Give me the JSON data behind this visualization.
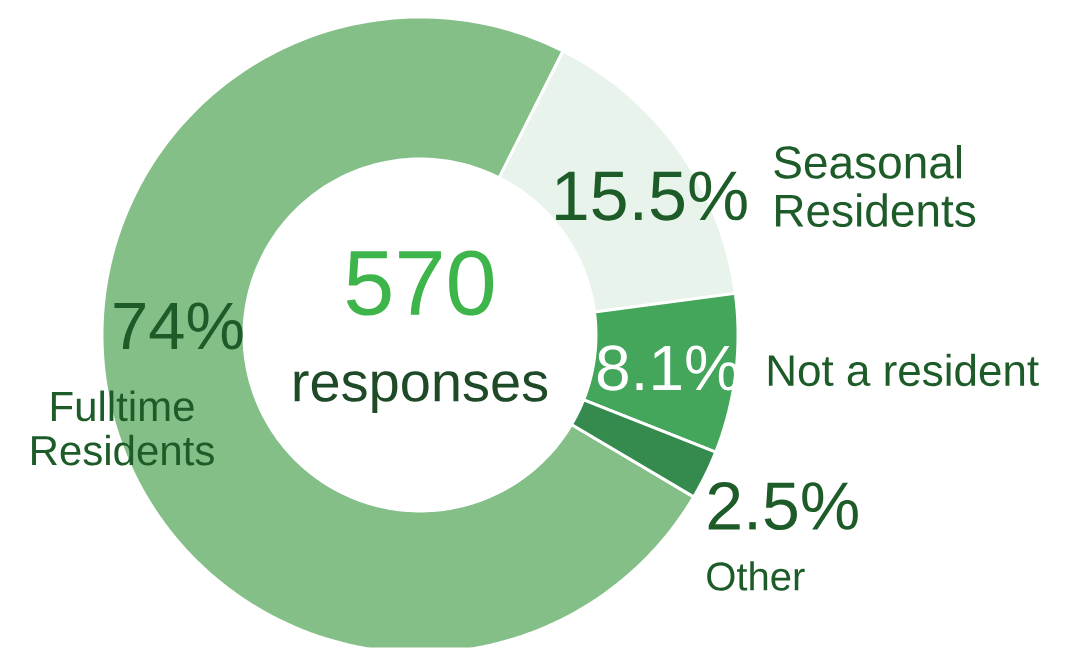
{
  "chart_data": {
    "type": "donut",
    "categories": [
      "Fulltime Residents",
      "Seasonal Residents",
      "Not a resident",
      "Other"
    ],
    "values": [
      74,
      15.5,
      8.1,
      2.5
    ],
    "value_labels": [
      "74%",
      "15.5%",
      "8.1%",
      "2.5%"
    ],
    "colors": [
      "#84bf88",
      "#e8f3ec",
      "#43a65a",
      "#358a4d"
    ],
    "annotations": [
      "570",
      "responses"
    ]
  }
}
